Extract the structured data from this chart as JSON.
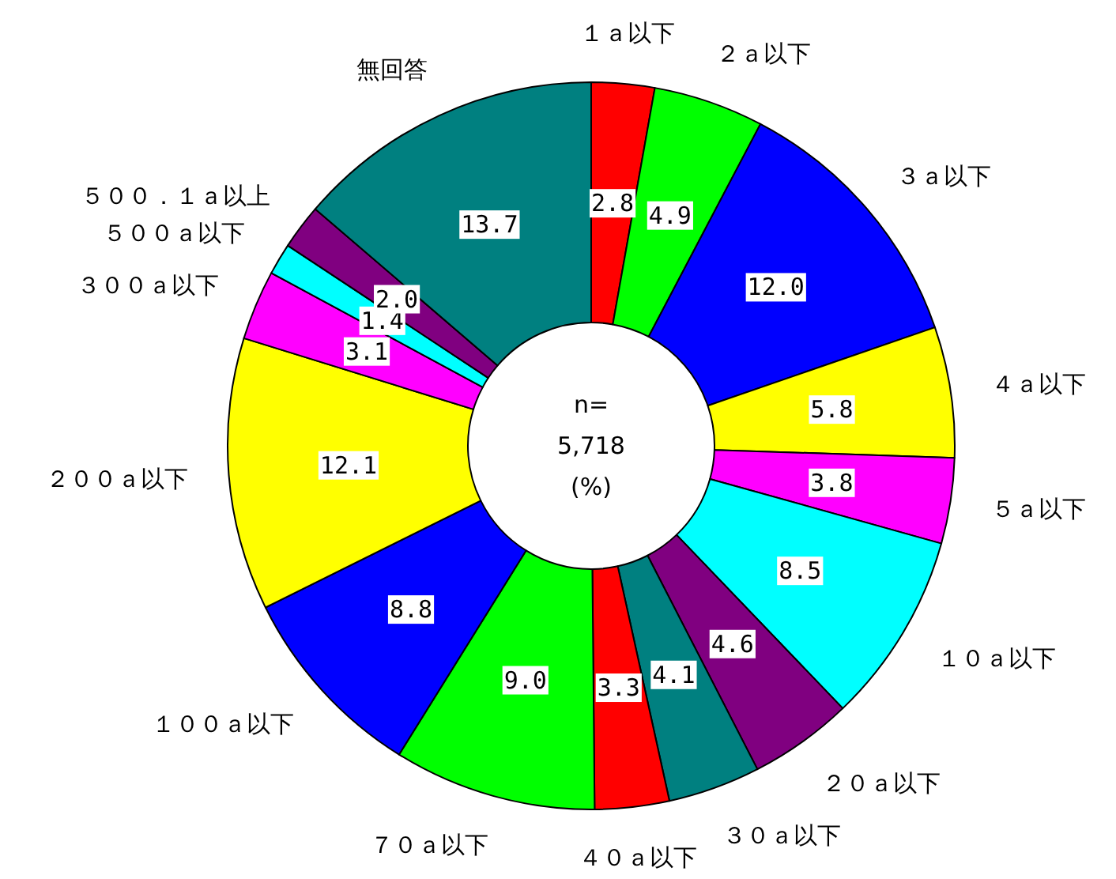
{
  "chart_data": {
    "type": "donut",
    "categories": [
      "１ａ以下",
      "２ａ以下",
      "３ａ以下",
      "４ａ以下",
      "５ａ以下",
      "１０ａ以下",
      "２０ａ以下",
      "３０ａ以下",
      "４０ａ以下",
      "７０ａ以下",
      "１００ａ以下",
      "２００ａ以下",
      "３００ａ以下",
      "５００ａ以下",
      "５００．１ａ以上",
      "無回答"
    ],
    "values": [
      2.8,
      4.9,
      12.0,
      5.8,
      3.8,
      8.5,
      4.6,
      4.1,
      3.3,
      9.0,
      8.8,
      12.1,
      3.1,
      1.4,
      2.0,
      13.7
    ],
    "colors": [
      "#ff0000",
      "#00ff00",
      "#0000ff",
      "#ffff00",
      "#ff00ff",
      "#00ffff",
      "#800080",
      "#008080",
      "#ff0000",
      "#00ff00",
      "#0000ff",
      "#ffff00",
      "#ff00ff",
      "#00ffff",
      "#800080",
      "#008080"
    ],
    "value_labels": [
      "2.8",
      "4.9",
      "12.0",
      "5.8",
      "3.8",
      "8.5",
      "4.6",
      "4.1",
      "3.3",
      "9.0",
      "8.8",
      "12.1",
      "3.1",
      "1.4",
      "2.0",
      "13.7"
    ],
    "annotations": [
      "n=",
      "5,718",
      "(%)"
    ]
  }
}
